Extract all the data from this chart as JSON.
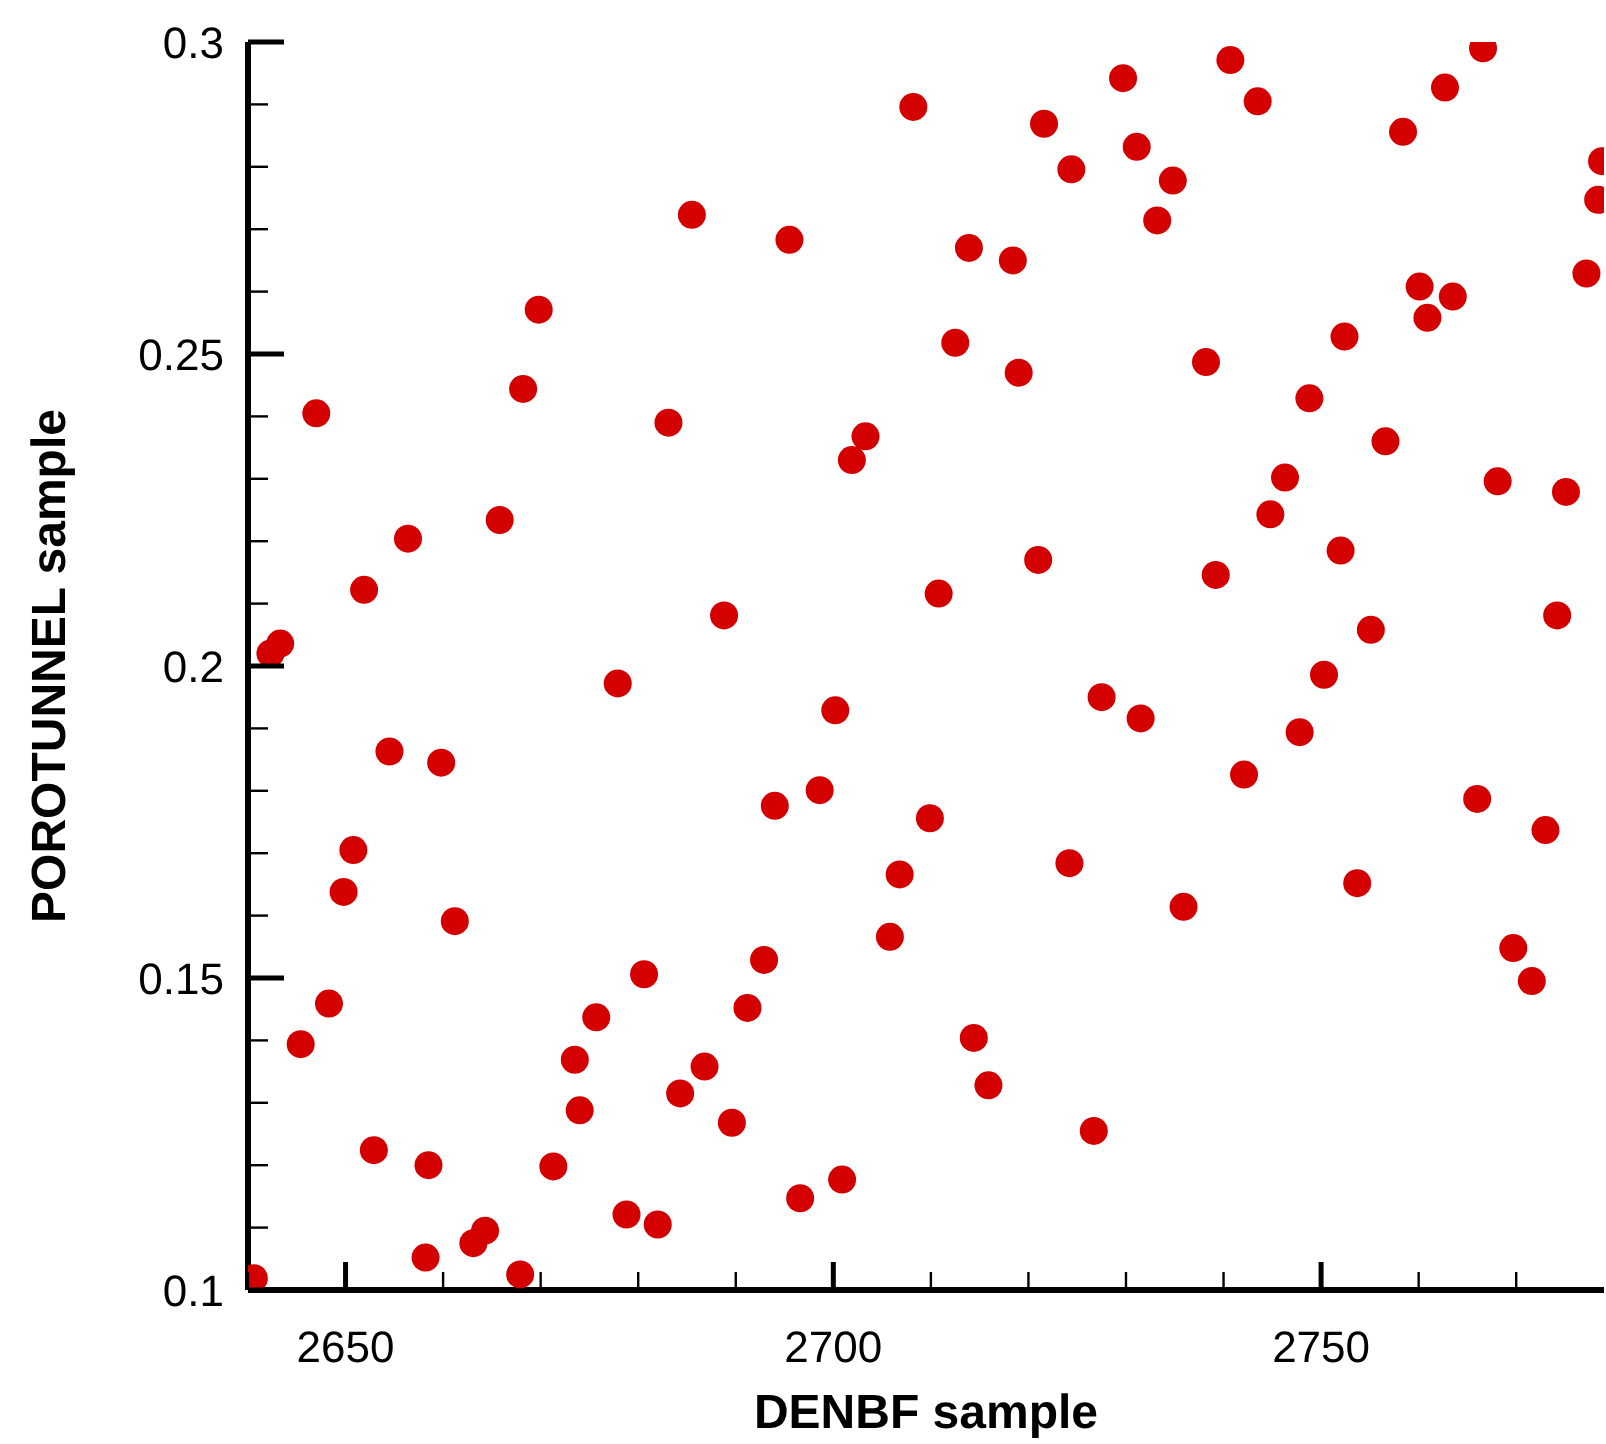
{
  "chart_data": {
    "type": "scatter",
    "xlabel": "DENBF sample",
    "ylabel": "POROTUNNEL sample",
    "xlim": [
      2640,
      2779
    ],
    "ylim": [
      0.1,
      0.3
    ],
    "xticks": [
      {
        "value": 2640,
        "label": null
      },
      2650,
      {
        "value": 2660,
        "label": null
      },
      {
        "value": 2670,
        "label": null
      },
      {
        "value": 2680,
        "label": null
      },
      {
        "value": 2690,
        "label": null
      },
      2700,
      {
        "value": 2710,
        "label": null
      },
      {
        "value": 2720,
        "label": null
      },
      {
        "value": 2730,
        "label": null
      },
      {
        "value": 2740,
        "label": null
      },
      2750,
      {
        "value": 2760,
        "label": null
      },
      {
        "value": 2770,
        "label": null
      }
    ],
    "yticks": [
      0.1,
      {
        "value": 0.11,
        "label": null
      },
      {
        "value": 0.12,
        "label": null
      },
      {
        "value": 0.13,
        "label": null
      },
      {
        "value": 0.14,
        "label": null
      },
      0.15,
      {
        "value": 0.16,
        "label": null
      },
      {
        "value": 0.17,
        "label": null
      },
      {
        "value": 0.18,
        "label": null
      },
      {
        "value": 0.19,
        "label": null
      },
      0.2,
      {
        "value": 0.21,
        "label": null
      },
      {
        "value": 0.22,
        "label": null
      },
      {
        "value": 0.23,
        "label": null
      },
      {
        "value": 0.24,
        "label": null
      },
      0.25,
      {
        "value": 0.26,
        "label": null
      },
      {
        "value": 0.27,
        "label": null
      },
      {
        "value": 0.28,
        "label": null
      },
      {
        "value": 0.29,
        "label": null
      },
      0.3
    ],
    "marker": "circle",
    "grid": false,
    "legend": false,
    "series": [
      {
        "color": "#d40000",
        "x": [
          2708.2,
          2685.5,
          2695.5,
          2669.8,
          2668.2,
          2647.0,
          2683.1,
          2703.3,
          2701.9,
          2665.8,
          2656.4,
          2651.9,
          2688.8,
          2643.3,
          2642.3,
          2677.9,
          2729.7,
          2740.7,
          2766.6,
          2721.6,
          2743.5,
          2762.7,
          2731.1,
          2758.4,
          2724.4,
          2734.8,
          2778.8,
          2778.4,
          2733.2,
          2713.9,
          2718.4,
          2777.2,
          2760.1,
          2763.5,
          2760.9,
          2752.4,
          2712.5,
          2719.0,
          2738.2,
          2748.8,
          2756.6,
          2746.3,
          2768.1,
          2775.1,
          2744.8,
          2721.0,
          2710.8,
          2739.2,
          2752.0,
          2774.2,
          2755.1,
          2750.3,
          2727.5,
          2731.5,
          2747.8,
          2742.1,
          2709.9,
          2766.0,
          2773.0,
          2724.2,
          2753.7,
          2735.9,
          2769.7,
          2771.6,
          2714.4,
          2715.9,
          2726.7,
          2706.8,
          2705.8,
          2700.2,
          2654.5,
          2659.8,
          2698.6,
          2694.0,
          2650.8,
          2649.8,
          2661.2,
          2680.6,
          2692.9,
          2648.3,
          2691.2,
          2675.7,
          2645.4,
          2673.5,
          2686.8,
          2684.3,
          2674.0,
          2689.6,
          2652.9,
          2658.5,
          2671.3,
          2700.9,
          2696.6,
          2678.8,
          2682.0,
          2664.3,
          2663.1,
          2658.2,
          2667.9,
          2640.6
        ],
        "values": [
          0.2896,
          0.2723,
          0.2683,
          0.2571,
          0.2444,
          0.2405,
          0.239,
          0.2368,
          0.233,
          0.2234,
          0.2204,
          0.2122,
          0.2081,
          0.2036,
          0.202,
          0.1972,
          0.2942,
          0.2971,
          0.299,
          0.2869,
          0.2905,
          0.2927,
          0.2832,
          0.2856,
          0.2796,
          0.2778,
          0.2809,
          0.2747,
          0.2714,
          0.267,
          0.265,
          0.2629,
          0.2608,
          0.2592,
          0.2558,
          0.2528,
          0.2518,
          0.247,
          0.2487,
          0.2429,
          0.236,
          0.2302,
          0.2296,
          0.2279,
          0.2243,
          0.217,
          0.2116,
          0.2146,
          0.2185,
          0.2081,
          0.2058,
          0.1986,
          0.195,
          0.1916,
          0.1894,
          0.1826,
          0.1756,
          0.1787,
          0.1737,
          0.1684,
          0.1652,
          0.1614,
          0.1548,
          0.1495,
          0.1404,
          0.1328,
          0.1255,
          0.1666,
          0.1566,
          0.1929,
          0.1863,
          0.1845,
          0.1801,
          0.1776,
          0.1705,
          0.1638,
          0.1591,
          0.1506,
          0.1529,
          0.1459,
          0.1452,
          0.1437,
          0.1394,
          0.1369,
          0.1358,
          0.1315,
          0.1288,
          0.1268,
          0.1224,
          0.12,
          0.1198,
          0.1177,
          0.1147,
          0.1121,
          0.1105,
          0.1095,
          0.1075,
          0.1052,
          0.1025,
          0.1019
        ]
      }
    ]
  }
}
